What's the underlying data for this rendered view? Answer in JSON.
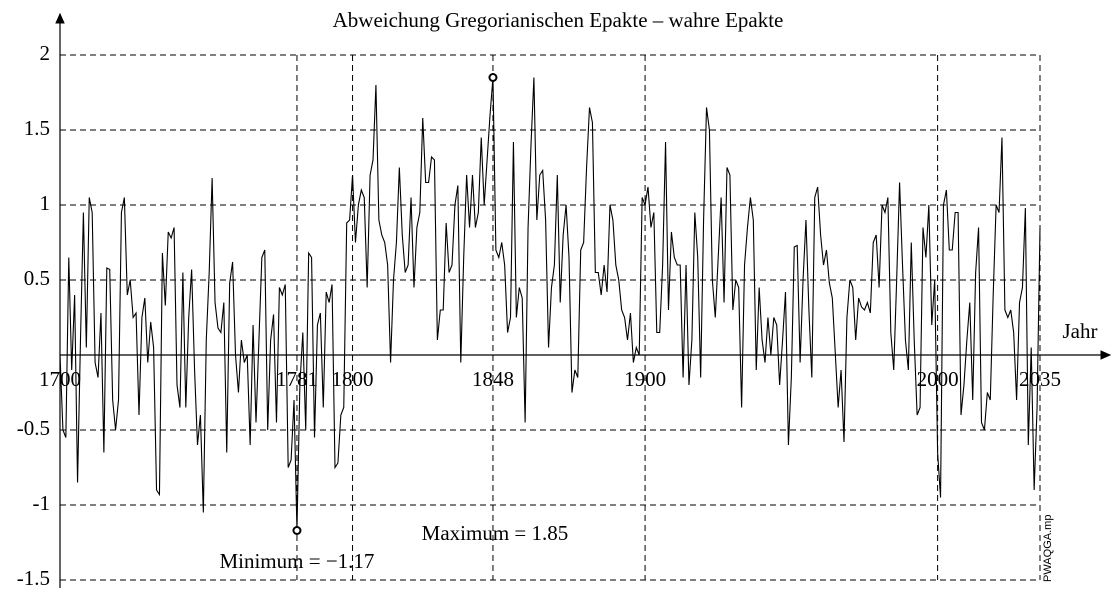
{
  "chart_data": {
    "type": "line",
    "title": "Abweichung Gregorianischen Epakte – wahre Epakte",
    "xlabel": "Jahr",
    "watermark": "PWAQGA.mp",
    "color": "#000000",
    "grid": true,
    "xlim": [
      1700,
      2035
    ],
    "ylim": [
      -1.5,
      2
    ],
    "xticks": [
      1700,
      1781,
      1800,
      1848,
      1900,
      2000,
      2035
    ],
    "yticks": [
      -1.5,
      -1,
      -0.5,
      0.5,
      1,
      1.5,
      2
    ],
    "x": [
      1700,
      1701,
      1702,
      1703,
      1704,
      1705,
      1706,
      1707,
      1708,
      1709,
      1710,
      1711,
      1712,
      1713,
      1714,
      1715,
      1716,
      1717,
      1718,
      1719,
      1720,
      1721,
      1722,
      1723,
      1724,
      1725,
      1726,
      1727,
      1728,
      1729,
      1730,
      1731,
      1732,
      1733,
      1734,
      1735,
      1736,
      1737,
      1738,
      1739,
      1740,
      1741,
      1742,
      1743,
      1744,
      1745,
      1746,
      1747,
      1748,
      1749,
      1750,
      1751,
      1752,
      1753,
      1754,
      1755,
      1756,
      1757,
      1758,
      1759,
      1760,
      1761,
      1762,
      1763,
      1764,
      1765,
      1766,
      1767,
      1768,
      1769,
      1770,
      1771,
      1772,
      1773,
      1774,
      1775,
      1776,
      1777,
      1778,
      1779,
      1780,
      1781,
      1782,
      1783,
      1784,
      1785,
      1786,
      1787,
      1788,
      1789,
      1790,
      1791,
      1792,
      1793,
      1794,
      1795,
      1796,
      1797,
      1798,
      1799,
      1800,
      1801,
      1802,
      1803,
      1804,
      1805,
      1806,
      1807,
      1808,
      1809,
      1810,
      1811,
      1812,
      1813,
      1814,
      1815,
      1816,
      1817,
      1818,
      1819,
      1820,
      1821,
      1822,
      1823,
      1824,
      1825,
      1826,
      1827,
      1828,
      1829,
      1830,
      1831,
      1832,
      1833,
      1834,
      1835,
      1836,
      1837,
      1838,
      1839,
      1840,
      1841,
      1842,
      1843,
      1844,
      1845,
      1846,
      1847,
      1848,
      1849,
      1850,
      1851,
      1852,
      1853,
      1854,
      1855,
      1856,
      1857,
      1858,
      1859,
      1860,
      1861,
      1862,
      1863,
      1864,
      1865,
      1866,
      1867,
      1868,
      1869,
      1870,
      1871,
      1872,
      1873,
      1874,
      1875,
      1876,
      1877,
      1878,
      1879,
      1880,
      1881,
      1882,
      1883,
      1884,
      1885,
      1886,
      1887,
      1888,
      1889,
      1890,
      1891,
      1892,
      1893,
      1894,
      1895,
      1896,
      1897,
      1898,
      1899,
      1900,
      1901,
      1902,
      1903,
      1904,
      1905,
      1906,
      1907,
      1908,
      1909,
      1910,
      1911,
      1912,
      1913,
      1914,
      1915,
      1916,
      1917,
      1918,
      1919,
      1920,
      1921,
      1922,
      1923,
      1924,
      1925,
      1926,
      1927,
      1928,
      1929,
      1930,
      1931,
      1932,
      1933,
      1934,
      1935,
      1936,
      1937,
      1938,
      1939,
      1940,
      1941,
      1942,
      1943,
      1944,
      1945,
      1946,
      1947,
      1948,
      1949,
      1950,
      1951,
      1952,
      1953,
      1954,
      1955,
      1956,
      1957,
      1958,
      1959,
      1960,
      1961,
      1962,
      1963,
      1964,
      1965,
      1966,
      1967,
      1968,
      1969,
      1970,
      1971,
      1972,
      1973,
      1974,
      1975,
      1976,
      1977,
      1978,
      1979,
      1980,
      1981,
      1982,
      1983,
      1984,
      1985,
      1986,
      1987,
      1988,
      1989,
      1990,
      1991,
      1992,
      1993,
      1994,
      1995,
      1996,
      1997,
      1998,
      1999,
      2000,
      2001,
      2002,
      2003,
      2004,
      2005,
      2006,
      2007,
      2008,
      2009,
      2010,
      2011,
      2012,
      2013,
      2014,
      2015,
      2016,
      2017,
      2018,
      2019,
      2020,
      2021,
      2022,
      2023,
      2024,
      2025,
      2026,
      2027,
      2028,
      2029,
      2030,
      2031,
      2032,
      2033,
      2034,
      2035
    ],
    "values": [
      0,
      -0.5,
      -0.55,
      0.65,
      -0.1,
      0.4,
      -0.85,
      0.1,
      0.95,
      0.05,
      1.05,
      0.95,
      -0.05,
      -0.15,
      0.28,
      -0.65,
      0.58,
      0.57,
      -0.3,
      -0.5,
      -0.3,
      0.95,
      1.05,
      0.4,
      0.5,
      0.25,
      0.28,
      -0.4,
      0.25,
      0.38,
      -0.05,
      0.22,
      0.05,
      -0.9,
      -0.93,
      0.68,
      0.33,
      0.82,
      0.78,
      0.85,
      -0.2,
      -0.35,
      0.55,
      -0.35,
      0.25,
      0.57,
      -0.1,
      -0.6,
      -0.4,
      -1.05,
      0.1,
      0.55,
      1.18,
      0.35,
      0.18,
      0.15,
      0.35,
      -0.65,
      0.48,
      0.62,
      0,
      -0.25,
      0.1,
      -0.05,
      0,
      -0.6,
      0.2,
      -0.45,
      0.1,
      0.65,
      0.7,
      -0.5,
      0.1,
      0.27,
      -0.45,
      0.45,
      0.4,
      0.47,
      -0.75,
      -0.7,
      -0.3,
      -1.17,
      -0.2,
      0.15,
      -0.5,
      0.68,
      0.65,
      -0.55,
      0.2,
      0.28,
      -0.35,
      0.42,
      0.35,
      0.47,
      -0.75,
      -0.72,
      -0.4,
      -0.35,
      0.88,
      0.9,
      1.2,
      0.75,
      1,
      1.1,
      1.05,
      0.45,
      1.2,
      1.3,
      1.8,
      0.9,
      0.8,
      0.75,
      0.6,
      -0.05,
      0.5,
      0.75,
      1.25,
      0.8,
      0.55,
      0.6,
      1.05,
      0.45,
      0.85,
      0.95,
      1.58,
      1.15,
      1.15,
      1.32,
      1.3,
      0.1,
      0.3,
      0.3,
      0.88,
      0.55,
      0.6,
      1,
      1.13,
      -0.05,
      0.65,
      1.2,
      0.85,
      1.2,
      0.85,
      0.95,
      1.45,
      1,
      1.3,
      1.6,
      1.85,
      0.7,
      0.65,
      0.75,
      0.6,
      0.15,
      0.25,
      1.42,
      0.25,
      0.45,
      0.38,
      -0.45,
      0.85,
      1.4,
      1.85,
      0.9,
      1.2,
      1.23,
      0.9,
      0.05,
      0.45,
      0.6,
      1.2,
      0.35,
      0.8,
      1,
      0.65,
      -0.25,
      -0.1,
      -0.15,
      0.7,
      0.75,
      1.25,
      1.65,
      1.55,
      0.55,
      0.55,
      0.4,
      0.6,
      0.42,
      1,
      0.9,
      0.6,
      0.5,
      0.3,
      0.25,
      0.1,
      0.28,
      -0.05,
      0.05,
      0,
      1.05,
      1,
      1.12,
      0.85,
      0.95,
      0.15,
      0.15,
      0.6,
      1.42,
      0.3,
      0.82,
      0.65,
      0.6,
      0.6,
      -0.15,
      0.6,
      -0.2,
      0.1,
      0.95,
      0.65,
      -0.15,
      0.9,
      1.65,
      1.5,
      0.5,
      0.25,
      0.65,
      1.05,
      0.35,
      1.25,
      1.2,
      0.3,
      0.5,
      0.45,
      -0.35,
      0.6,
      0.85,
      1.05,
      0.9,
      -0.1,
      0.45,
      0.1,
      -0.05,
      0.25,
      0,
      0.25,
      0.2,
      -0.2,
      0.1,
      0.42,
      -0.6,
      -0.15,
      0.72,
      0.73,
      -0.05,
      0.5,
      0.9,
      0.3,
      -0.15,
      1.05,
      1.12,
      0.8,
      0.6,
      0.7,
      0.48,
      0.38,
      0.02,
      -0.35,
      -0.1,
      -0.58,
      0.25,
      0.5,
      0.45,
      0.1,
      0.38,
      0.32,
      0.3,
      0.35,
      0.28,
      0.75,
      0.8,
      0.45,
      1,
      0.95,
      1.05,
      0.15,
      -0.1,
      0.5,
      1.15,
      0.6,
      0.1,
      -0.1,
      0.75,
      0.1,
      -0.4,
      -0.35,
      0.85,
      0.65,
      1,
      0.2,
      0.5,
      -0.65,
      -0.95,
      1,
      1.1,
      0.7,
      0.7,
      0.95,
      0.95,
      -0.4,
      -0.2,
      0.1,
      0.35,
      -0.3,
      0.55,
      0.85,
      -0.45,
      -0.5,
      -0.25,
      -0.3,
      0.4,
      1,
      0.95,
      1.45,
      0.3,
      0.25,
      0.3,
      0.15,
      -0.3,
      0.35,
      0.45,
      0.98,
      -0.6,
      0.05,
      -0.9,
      -0.35,
      0.85
    ],
    "annotations": [
      {
        "text": "Maximum = 1.85",
        "x": 1848,
        "y": 1.85
      },
      {
        "text": "Minimum = −1.17",
        "x": 1781,
        "y": -1.17
      }
    ]
  }
}
